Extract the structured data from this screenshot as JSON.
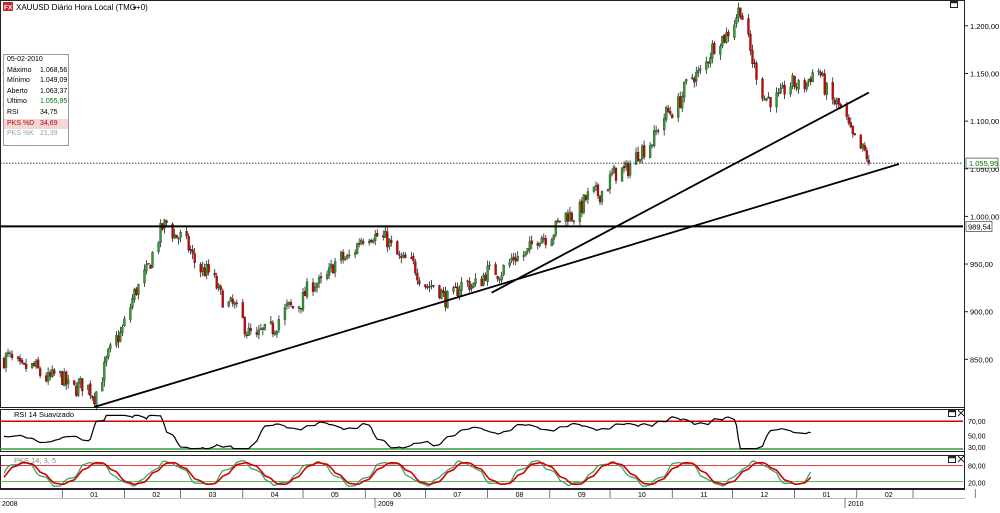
{
  "header": {
    "logo_text": "FX",
    "title": "XAUUSD Diário Hora Local (TMG+0)",
    "menu_arrow": "▾"
  },
  "infobox": {
    "date": "05-02-2010",
    "rows": [
      {
        "k": "Máximo",
        "v": "1.068,56"
      },
      {
        "k": "Mínimo",
        "v": "1.049,09"
      },
      {
        "k": "Aberto",
        "v": "1.063,37"
      },
      {
        "k": "Último",
        "v": "1.055,95"
      },
      {
        "k": "RSI",
        "v": "34,75"
      },
      {
        "k": "PKS %D",
        "v": "34,69"
      },
      {
        "k": "PKS %K",
        "v": "21,39"
      }
    ]
  },
  "price_axis": {
    "ticks": [
      "1.200,00",
      "1.150,00",
      "1.100,00",
      "1.050,00",
      "1.000,00",
      "950,00",
      "900,00",
      "850,00"
    ],
    "last_label": "1.055,95",
    "level_label": "989,54"
  },
  "rsi_panel": {
    "title": "RSI 14 Suavizado",
    "ticks": [
      "70,00",
      "50,00",
      "30,00"
    ]
  },
  "pks_panel": {
    "title": "PKS 14, 3, 5",
    "ticks": [
      "80,00",
      "20,00"
    ]
  },
  "time_axis": {
    "months": [
      "01",
      "02",
      "03",
      "04",
      "05",
      "06",
      "07",
      "08",
      "09",
      "10",
      "11",
      "12",
      "01",
      "02"
    ],
    "years": [
      "2008",
      "2009",
      "2010"
    ]
  },
  "chart_data": [
    {
      "type": "candlestick",
      "title": "XAUUSD Diário Hora Local (TMG+0)",
      "x_start": "2008-12",
      "x_end": "2010-02-05",
      "ylim": [
        800,
        1225
      ],
      "key_points": [
        {
          "date": "2008-12",
          "close": 850
        },
        {
          "date": "2009-01-15",
          "close": 815
        },
        {
          "date": "2009-02-20",
          "close": 995
        },
        {
          "date": "2009-04-06",
          "close": 870
        },
        {
          "date": "2009-06-03",
          "close": 985
        },
        {
          "date": "2009-07-08",
          "close": 915
        },
        {
          "date": "2009-08-10",
          "close": 950
        },
        {
          "date": "2009-09-17",
          "close": 1015
        },
        {
          "date": "2009-10-14",
          "close": 1065
        },
        {
          "date": "2009-12-03",
          "close": 1215
        },
        {
          "date": "2009-12-15",
          "close": 1120
        },
        {
          "date": "2010-01-11",
          "close": 1150
        },
        {
          "date": "2010-02-05",
          "close": 1055.95
        }
      ],
      "last": 1055.95,
      "horizontal_level": 989.54,
      "trendlines": [
        {
          "from": [
            "2009-01-15",
            800
          ],
          "to": [
            "2010-02-20",
            1055
          ]
        },
        {
          "from": [
            "2009-08-01",
            920
          ],
          "to": [
            "2010-02-05",
            1130
          ]
        }
      ]
    },
    {
      "type": "line",
      "title": "RSI 14 Suavizado",
      "ylim": [
        30,
        80
      ],
      "levels": [
        70,
        30
      ],
      "last": 34.75
    },
    {
      "type": "line",
      "title": "PKS 14, 3, 5",
      "ylim": [
        0,
        100
      ],
      "levels": [
        80,
        20
      ],
      "series": [
        {
          "name": "PKS %D",
          "last": 34.69,
          "color": "#d40000"
        },
        {
          "name": "PKS %K",
          "last": 21.39,
          "color": "#3aa56a"
        }
      ]
    }
  ],
  "colors": {
    "bull": "#2f9e2f",
    "bear": "#d40000",
    "axis_tag_last": "#007000"
  }
}
